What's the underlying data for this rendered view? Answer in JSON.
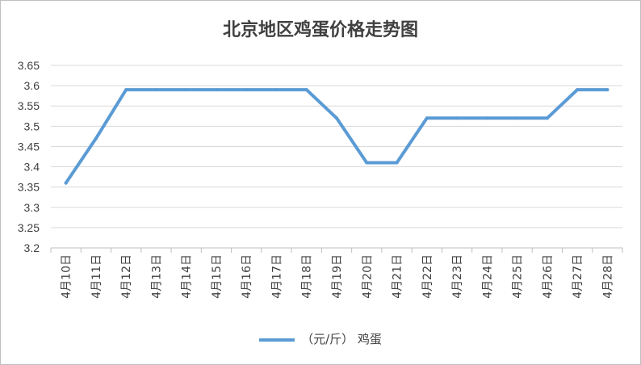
{
  "chart_data": {
    "type": "line",
    "title": "北京地区鸡蛋价格走势图",
    "categories": [
      "4月10日",
      "4月11日",
      "4月12日",
      "4月13日",
      "4月14日",
      "4月15日",
      "4月16日",
      "4月17日",
      "4月18日",
      "4月19日",
      "4月20日",
      "4月21日",
      "4月22日",
      "4月23日",
      "4月24日",
      "4月25日",
      "4月26日",
      "4月27日",
      "4月28日"
    ],
    "series": [
      {
        "name": "（元/斤） 鸡蛋",
        "color": "#5b9bd5",
        "values": [
          3.36,
          3.47,
          3.59,
          3.59,
          3.59,
          3.59,
          3.59,
          3.59,
          3.59,
          3.52,
          3.41,
          3.41,
          3.52,
          3.52,
          3.52,
          3.52,
          3.52,
          3.59,
          3.59
        ]
      }
    ],
    "yticks": [
      "3.2",
      "3.25",
      "3.3",
      "3.35",
      "3.4",
      "3.45",
      "3.5",
      "3.55",
      "3.6",
      "3.65"
    ],
    "ylim": [
      3.2,
      3.65
    ],
    "grid": true,
    "legend_position": "bottom"
  }
}
